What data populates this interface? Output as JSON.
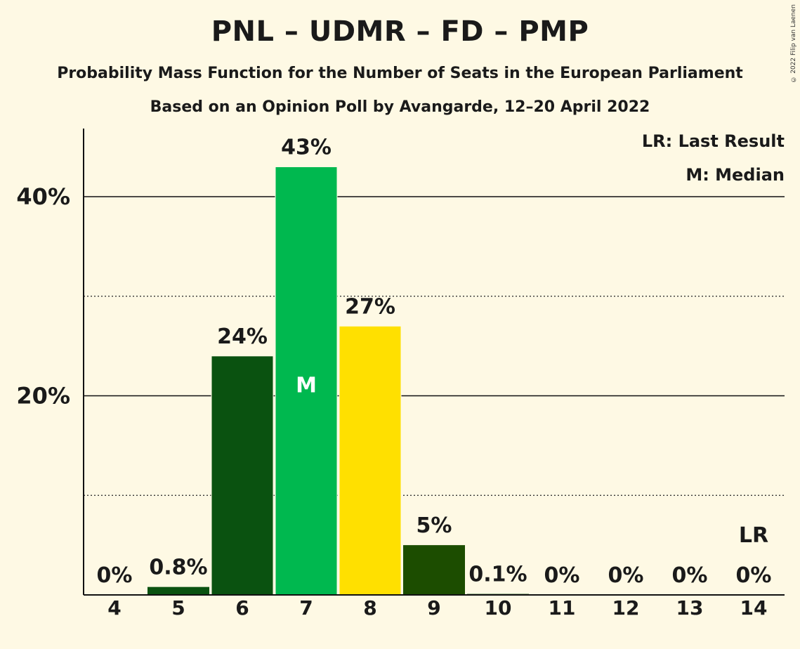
{
  "title": "PNL – UDMR – FD – PMP",
  "subtitle": "Probability Mass Function for the Number of Seats in the European Parliament",
  "subtitle2": "Based on an Opinion Poll by Avangarde, 12–20 April 2022",
  "copyright": "© 2022 Filip van Laenen",
  "legend": {
    "last_result": "LR: Last Result",
    "median": "M: Median"
  },
  "colors": {
    "background": "#fef9e4",
    "dark_green": "#0a5210",
    "bright_green": "#00b84f",
    "yellow": "#ffe000",
    "olive_green": "#1c4d00"
  },
  "chart_data": {
    "type": "bar",
    "categories": [
      "4",
      "5",
      "6",
      "7",
      "8",
      "9",
      "10",
      "11",
      "12",
      "13",
      "14"
    ],
    "values": [
      0,
      0.8,
      24,
      43,
      27,
      5,
      0.1,
      0,
      0,
      0,
      0
    ],
    "data_labels": [
      "0%",
      "0.8%",
      "24%",
      "43%",
      "27%",
      "5%",
      "0.1%",
      "0%",
      "0%",
      "0%",
      "0%"
    ],
    "bar_colors": [
      "#0a5210",
      "#0a5210",
      "#0a5210",
      "#00b84f",
      "#ffe000",
      "#1c4d00",
      "#0a5210",
      "#0a5210",
      "#0a5210",
      "#0a5210",
      "#0a5210"
    ],
    "median_category": "7",
    "median_marker": "M",
    "last_result_category": "14",
    "last_result_marker": "LR",
    "ylim": [
      0,
      47
    ],
    "yticks": [
      20,
      40
    ],
    "ytick_labels": [
      "20%",
      "40%"
    ],
    "minor_gridlines": [
      10,
      30
    ],
    "legend_position": "top-right"
  }
}
